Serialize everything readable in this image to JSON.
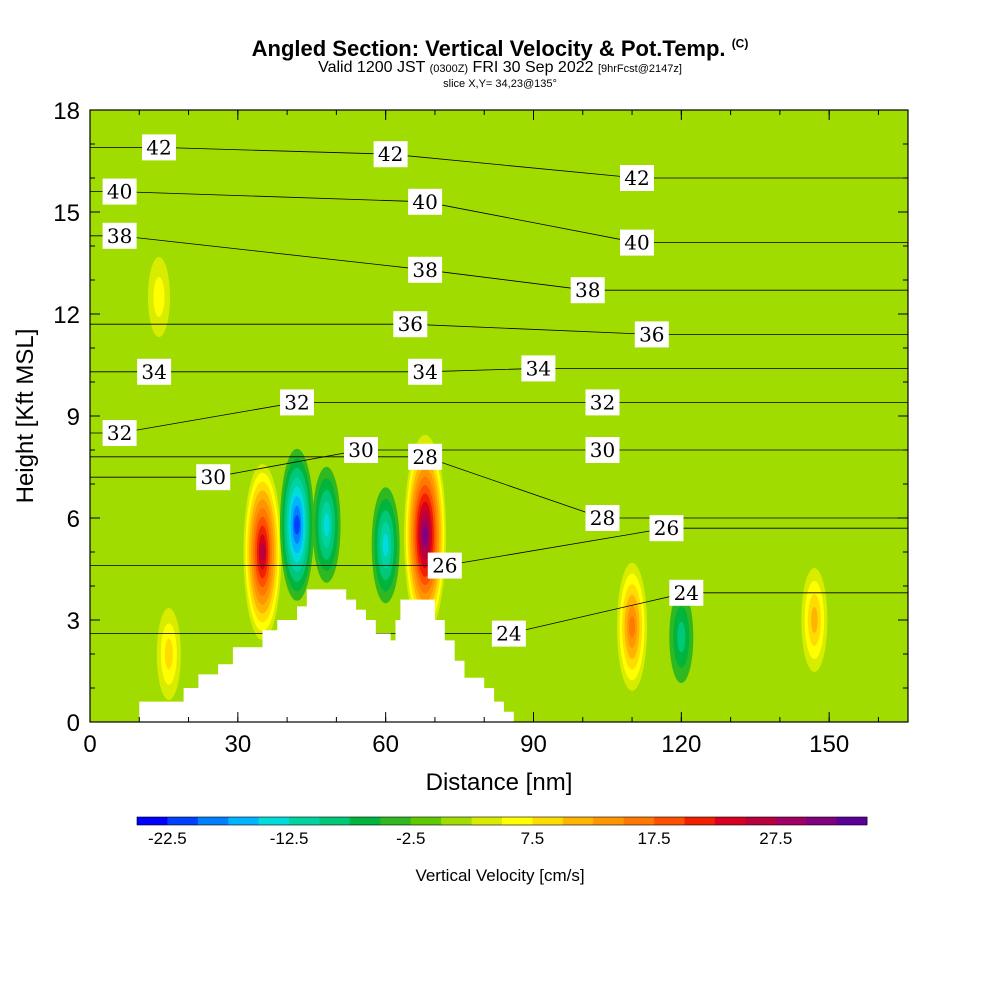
{
  "title": {
    "main": "Angled Section: Vertical Velocity & Pot.Temp.",
    "units": "(C)",
    "valid_prefix": "Valid 1200 JST",
    "valid_z": "(0300Z)",
    "valid_date": "FRI 30 Sep 2022",
    "fcst": "[9hrFcst@2147z]",
    "slice": "slice X,Y= 34,23@135°"
  },
  "chart_data": {
    "type": "heatmap",
    "title": "Angled Section: Vertical Velocity & Pot.Temp. (C)",
    "xlabel": "Distance [nm]",
    "ylabel": "Height [Kft MSL]",
    "xlim": [
      0,
      166
    ],
    "ylim": [
      0,
      18
    ],
    "xticks": [
      0,
      30,
      60,
      90,
      120,
      150
    ],
    "yticks": [
      0,
      3,
      6,
      9,
      12,
      15,
      18
    ],
    "colorbar": {
      "label": "Vertical Velocity [cm/s]",
      "tick_labels": [
        "-22.5",
        "-12.5",
        "-2.5",
        "7.5",
        "17.5",
        "27.5"
      ],
      "colors": [
        "#0000ff",
        "#0040ff",
        "#0080ff",
        "#00b4ff",
        "#00dcdc",
        "#00d2a0",
        "#00c878",
        "#00b43c",
        "#30b820",
        "#60c800",
        "#a0dc00",
        "#d8ec00",
        "#ffff00",
        "#ffdc00",
        "#ffb400",
        "#ff9600",
        "#ff7800",
        "#ff5000",
        "#f02000",
        "#d80020",
        "#b8003c",
        "#a00064",
        "#800080",
        "#5a0096"
      ]
    },
    "background_velocity_cms": 0,
    "velocity_features": [
      {
        "x": 35,
        "z": 5.0,
        "value": 25
      },
      {
        "x": 42,
        "z": 5.8,
        "value": -20
      },
      {
        "x": 48,
        "z": 5.8,
        "value": -13
      },
      {
        "x": 60,
        "z": 5.2,
        "value": -12
      },
      {
        "x": 68,
        "z": 5.5,
        "value": 30
      },
      {
        "x": 110,
        "z": 2.8,
        "value": 15
      },
      {
        "x": 120,
        "z": 2.5,
        "value": -7
      },
      {
        "x": 16,
        "z": 2.0,
        "value": 7
      },
      {
        "x": 147,
        "z": 3.0,
        "value": 9
      },
      {
        "x": 14,
        "z": 12.5,
        "value": 5
      }
    ],
    "terrain_kft": {
      "x": [
        0,
        10,
        10,
        16,
        16,
        19,
        19,
        22,
        22,
        26,
        26,
        29,
        29,
        35,
        35,
        38,
        38,
        42,
        42,
        44,
        44,
        52,
        52,
        54,
        54,
        56,
        56,
        58,
        58,
        61,
        61,
        62,
        62,
        63,
        63,
        64,
        64,
        66,
        66,
        70,
        70,
        72,
        72,
        74,
        74,
        76,
        76,
        80,
        80,
        82,
        82,
        84,
        84,
        86,
        86,
        90,
        90,
        113,
        113,
        115,
        115,
        117,
        117,
        120,
        120,
        166
      ],
      "z": [
        0,
        0,
        0.6,
        0.6,
        0.6,
        0.6,
        1.0,
        1.0,
        1.4,
        1.4,
        1.7,
        1.7,
        2.2,
        2.2,
        2.7,
        2.7,
        3.0,
        3.0,
        3.4,
        3.4,
        3.9,
        3.9,
        3.6,
        3.6,
        3.3,
        3.3,
        3.0,
        3.0,
        2.6,
        2.6,
        2.4,
        2.4,
        3.0,
        3.0,
        3.6,
        3.6,
        3.6,
        3.6,
        3.6,
        3.6,
        3.0,
        3.0,
        2.4,
        2.4,
        1.8,
        1.8,
        1.3,
        1.3,
        1.0,
        1.0,
        0.6,
        0.6,
        0.3,
        0.3,
        0,
        0,
        0,
        0,
        0,
        0,
        0,
        0,
        0,
        0,
        0,
        0
      ]
    },
    "pot_temp_contours_c": [
      {
        "value": 42,
        "labels": [
          [
            14,
            16.9
          ],
          [
            61,
            16.7
          ],
          [
            111,
            16.0
          ]
        ]
      },
      {
        "value": 40,
        "labels": [
          [
            6,
            15.6
          ],
          [
            68,
            15.3
          ],
          [
            111,
            14.1
          ]
        ]
      },
      {
        "value": 38,
        "labels": [
          [
            6,
            14.3
          ],
          [
            68,
            13.3
          ],
          [
            101,
            12.7
          ]
        ]
      },
      {
        "value": 36,
        "labels": [
          [
            65,
            11.7
          ],
          [
            114,
            11.4
          ]
        ]
      },
      {
        "value": 34,
        "labels": [
          [
            13,
            10.3
          ],
          [
            68,
            10.3
          ],
          [
            91,
            10.4
          ]
        ]
      },
      {
        "value": 32,
        "labels": [
          [
            6,
            8.5
          ],
          [
            42,
            9.4
          ],
          [
            104,
            9.4
          ]
        ]
      },
      {
        "value": 30,
        "labels": [
          [
            25,
            7.2
          ],
          [
            55,
            8.0
          ],
          [
            104,
            8.0
          ]
        ]
      },
      {
        "value": 28,
        "labels": [
          [
            68,
            7.8
          ],
          [
            104,
            6.0
          ]
        ]
      },
      {
        "value": 26,
        "labels": [
          [
            72,
            4.6
          ],
          [
            117,
            5.7
          ]
        ]
      },
      {
        "value": 24,
        "labels": [
          [
            85,
            2.6
          ],
          [
            121,
            3.8
          ]
        ]
      }
    ]
  }
}
